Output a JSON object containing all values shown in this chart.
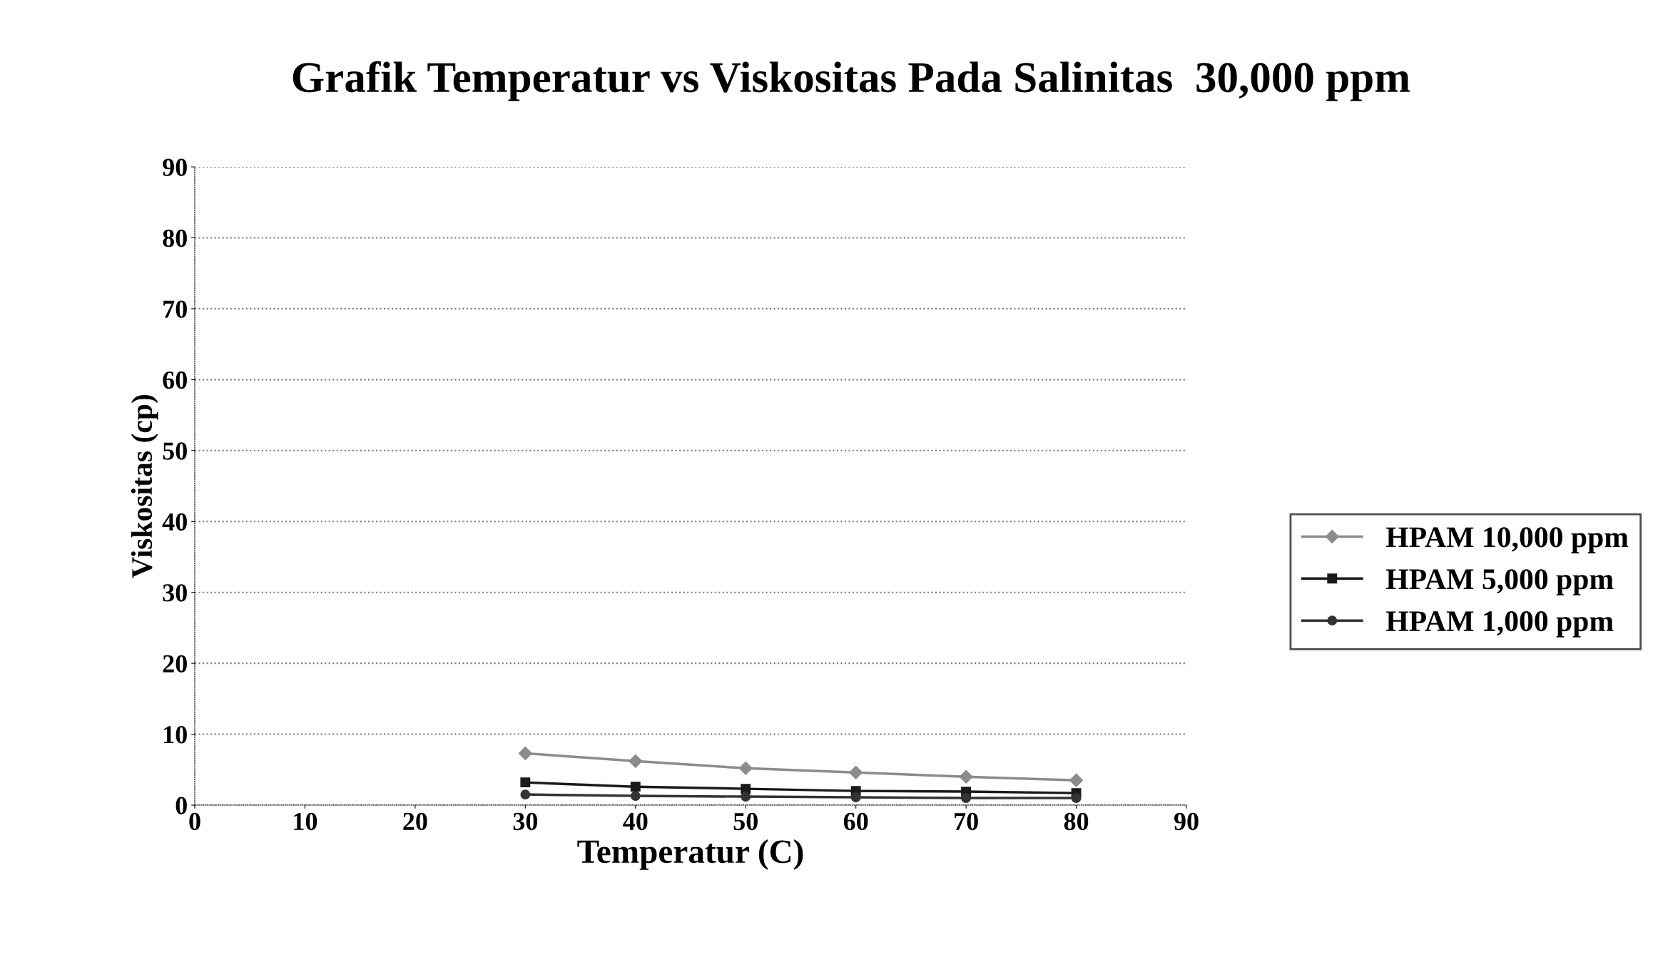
{
  "chart_data": {
    "type": "line",
    "title": "Grafik Temperatur vs Viskositas Pada Salinitas  30,000 ppm",
    "xlabel": "Temperatur (C)",
    "ylabel": "Viskositas (cp)",
    "x": [
      30,
      40,
      50,
      60,
      70,
      80
    ],
    "series": [
      {
        "name": "HPAM 10,000 ppm",
        "color": "#8c8c8c",
        "values": [
          7.3,
          6.2,
          5.2,
          4.6,
          4.0,
          3.5
        ],
        "marker": "diamond"
      },
      {
        "name": "HPAM 5,000 ppm",
        "color": "#1a1a1a",
        "values": [
          3.2,
          2.6,
          2.3,
          2.0,
          1.9,
          1.7
        ],
        "marker": "square"
      },
      {
        "name": "HPAM 1,000 ppm",
        "color": "#333333",
        "values": [
          1.5,
          1.3,
          1.2,
          1.1,
          1.0,
          1.0
        ],
        "marker": "circle"
      }
    ],
    "xlim": [
      0,
      90
    ],
    "xticks": [
      0,
      10,
      20,
      30,
      40,
      50,
      60,
      70,
      80,
      90
    ],
    "ylim": [
      0,
      90
    ],
    "yticks": [
      0,
      10,
      20,
      30,
      40,
      50,
      60,
      70,
      80,
      90
    ],
    "grid": "y",
    "legend": "right",
    "line_style": "solid"
  }
}
